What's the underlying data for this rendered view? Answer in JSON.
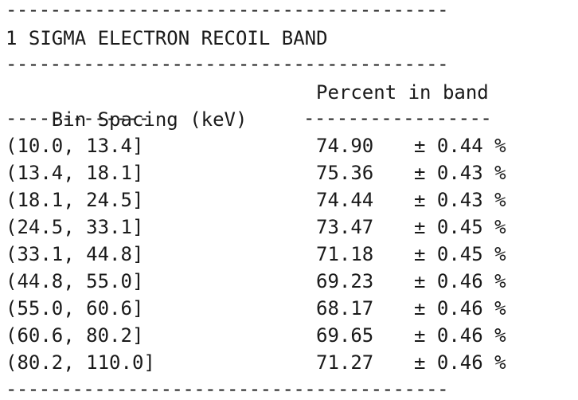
{
  "rules": {
    "full": "----------------------------------------",
    "col1": "-------------",
    "col2": "-----------------"
  },
  "title": "1 SIGMA ELECTRON RECOIL BAND",
  "headers": {
    "bin": "Bin Spacing (keV)",
    "percent": "Percent in band"
  },
  "rows": [
    {
      "bin": "(10.0, 13.4]",
      "value": "74.90",
      "error": "± 0.44 %"
    },
    {
      "bin": "(13.4, 18.1]",
      "value": "75.36",
      "error": "± 0.43 %"
    },
    {
      "bin": "(18.1, 24.5]",
      "value": "74.44",
      "error": "± 0.43 %"
    },
    {
      "bin": "(24.5, 33.1]",
      "value": "73.47",
      "error": "± 0.45 %"
    },
    {
      "bin": "(33.1, 44.8]",
      "value": "71.18",
      "error": "± 0.45 %"
    },
    {
      "bin": "(44.8, 55.0]",
      "value": "69.23",
      "error": "± 0.46 %"
    },
    {
      "bin": "(55.0, 60.6]",
      "value": "68.17",
      "error": "± 0.46 %"
    },
    {
      "bin": "(60.6, 80.2]",
      "value": "69.65",
      "error": "± 0.46 %"
    },
    {
      "bin": "(80.2, 110.0]",
      "value": "71.27",
      "error": "± 0.46 %"
    }
  ]
}
